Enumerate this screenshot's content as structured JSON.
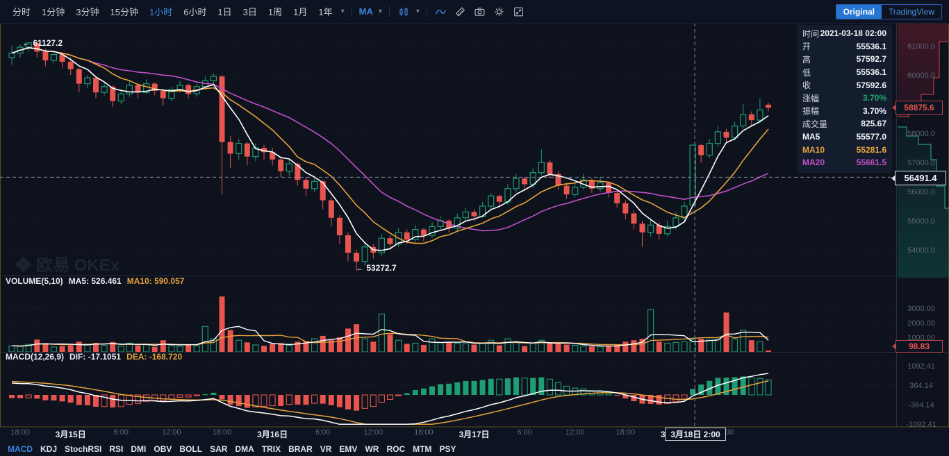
{
  "colors": {
    "up": "#1f9d74",
    "down": "#e8544e",
    "ma5": "#ffffff",
    "ma10": "#e8a33d",
    "ma20": "#c24fc9",
    "accent": "#3d85e0",
    "axis_text": "#5a6472",
    "grid": "#39414f",
    "frame": "#6e5a20",
    "crosshair": "#98a0ab"
  },
  "toolbar": {
    "timeframes": [
      {
        "label": "分时",
        "active": false
      },
      {
        "label": "1分钟",
        "active": false
      },
      {
        "label": "3分钟",
        "active": false
      },
      {
        "label": "15分钟",
        "active": false
      },
      {
        "label": "1小时",
        "active": true
      },
      {
        "label": "6小时",
        "active": false
      },
      {
        "label": "1日",
        "active": false
      },
      {
        "label": "3日",
        "active": false
      },
      {
        "label": "1周",
        "active": false
      },
      {
        "label": "1月",
        "active": false
      },
      {
        "label": "1年",
        "active": false
      }
    ],
    "ma_label": "MA",
    "toggle": {
      "original": "Original",
      "tradingview": "TradingView"
    }
  },
  "info_panel": {
    "rows": [
      {
        "label": "时间",
        "value": "2021-03-18 02:00",
        "color": "#f2f5f9"
      },
      {
        "label": "开",
        "value": "55536.1",
        "color": "#f2f5f9"
      },
      {
        "label": "高",
        "value": "57592.7",
        "color": "#f2f5f9"
      },
      {
        "label": "低",
        "value": "55536.1",
        "color": "#f2f5f9"
      },
      {
        "label": "收",
        "value": "57592.6",
        "color": "#f2f5f9"
      },
      {
        "label": "涨幅",
        "value": "3.70%",
        "color": "#1fab75"
      },
      {
        "label": "振幅",
        "value": "3.70%",
        "color": "#f2f5f9"
      },
      {
        "label": "成交量",
        "value": "825.67",
        "color": "#f2f5f9"
      },
      {
        "label": "MA5",
        "value": "55577.0",
        "color": "#f2f5f9",
        "label_color": "#f2f5f9"
      },
      {
        "label": "MA10",
        "value": "55281.6",
        "color": "#e8a33d",
        "label_color": "#e8a33d"
      },
      {
        "label": "MA20",
        "value": "55661.5",
        "color": "#c24fc9",
        "label_color": "#c24fc9"
      }
    ]
  },
  "pane_headers": {
    "volume": {
      "title": "VOLUME(5,10)",
      "ma5": "MA5: 526.461",
      "ma10": "MA10: 590.057"
    },
    "macd": {
      "title": "MACD(12,26,9)",
      "dif": "DIF: -17.1051",
      "dea": "DEA: -168.720"
    }
  },
  "badges": {
    "last_price": "58875.6",
    "crosshair_price": "56491.4",
    "volume_value": "98.83",
    "time": "3月18日 2:00"
  },
  "annotations": {
    "high": "← 61127.2",
    "low": "← 53272.7",
    "watermark": "欧易 OKEx"
  },
  "axes": {
    "price_ticks": [
      "61000.0",
      "60000.0",
      "59000.0",
      "58000.0",
      "57000.0",
      "56000.0",
      "55000.0",
      "54000.0"
    ],
    "volume_ticks": [
      "3000.00",
      "2000.00",
      "1000.00"
    ],
    "macd_ticks": [
      "1092.41",
      "364.14",
      "-364.14",
      "-1092.41"
    ],
    "time_labels": [
      {
        "text": "18:00",
        "index": 1,
        "day": false
      },
      {
        "text": "3月15日",
        "index": 7,
        "day": true
      },
      {
        "text": "6:00",
        "index": 13,
        "day": false
      },
      {
        "text": "12:00",
        "index": 19,
        "day": false
      },
      {
        "text": "18:00",
        "index": 25,
        "day": false
      },
      {
        "text": "3月16日",
        "index": 31,
        "day": true
      },
      {
        "text": "6:00",
        "index": 37,
        "day": false
      },
      {
        "text": "12:00",
        "index": 43,
        "day": false
      },
      {
        "text": "18:00",
        "index": 49,
        "day": false
      },
      {
        "text": "3月17日",
        "index": 55,
        "day": true
      },
      {
        "text": "6:00",
        "index": 61,
        "day": false
      },
      {
        "text": "12:00",
        "index": 67,
        "day": false
      },
      {
        "text": "18:00",
        "index": 73,
        "day": false
      },
      {
        "text": "3月18日",
        "index": 79,
        "day": true
      },
      {
        "text": "6:00",
        "index": 85,
        "day": false
      }
    ]
  },
  "indicator_tabs": [
    {
      "label": "MACD",
      "active": true
    },
    {
      "label": "KDJ",
      "active": false
    },
    {
      "label": "StochRSI",
      "active": false
    },
    {
      "label": "RSI",
      "active": false
    },
    {
      "label": "DMI",
      "active": false
    },
    {
      "label": "OBV",
      "active": false
    },
    {
      "label": "BOLL",
      "active": false
    },
    {
      "label": "SAR",
      "active": false
    },
    {
      "label": "DMA",
      "active": false
    },
    {
      "label": "TRIX",
      "active": false
    },
    {
      "label": "BRAR",
      "active": false
    },
    {
      "label": "VR",
      "active": false
    },
    {
      "label": "EMV",
      "active": false
    },
    {
      "label": "WR",
      "active": false
    },
    {
      "label": "ROC",
      "active": false
    },
    {
      "label": "MTM",
      "active": false
    },
    {
      "label": "PSY",
      "active": false
    }
  ],
  "chart_data": {
    "type": "candlestick",
    "interval": "1小时",
    "visible_range": "2021-03-14 17:00 — 2021-03-18 11:00",
    "price_axis": {
      "min": 53119,
      "max": 61786,
      "ticks": [
        61000,
        60000,
        59000,
        58000,
        57000,
        56000,
        55000,
        54000
      ]
    },
    "volume_axis": {
      "ticks": [
        1000,
        2000,
        3000
      ]
    },
    "macd_axis": {
      "ticks": [
        1092.41,
        364.14,
        -364.14,
        -1092.41
      ]
    },
    "high_label": 61127.2,
    "low_label": 53272.7,
    "last_price": 58875.6,
    "crosshair": {
      "index": 81,
      "price": 56491.4,
      "time": "3月18日 2:00"
    },
    "candles": [
      [
        60600,
        61000,
        60350,
        60750,
        420
      ],
      [
        60750,
        61050,
        60600,
        60950,
        380
      ],
      [
        60950,
        61127.2,
        60800,
        61100,
        520
      ],
      [
        61100,
        61120,
        60600,
        60800,
        850
      ],
      [
        60800,
        60900,
        60300,
        60500,
        600
      ],
      [
        60500,
        60800,
        60400,
        60700,
        340
      ],
      [
        60700,
        60750,
        60250,
        60450,
        410
      ],
      [
        60450,
        60600,
        60000,
        60200,
        450
      ],
      [
        60200,
        60250,
        59400,
        59700,
        700
      ],
      [
        59700,
        60000,
        59550,
        59900,
        500
      ],
      [
        59900,
        59950,
        59200,
        59400,
        620
      ],
      [
        59400,
        59750,
        59300,
        59600,
        430
      ],
      [
        59600,
        59650,
        58900,
        59100,
        680
      ],
      [
        59100,
        59500,
        59000,
        59350,
        390
      ],
      [
        59350,
        59800,
        59250,
        59650,
        600
      ],
      [
        59650,
        59700,
        59200,
        59400,
        450
      ],
      [
        59400,
        59850,
        59350,
        59700,
        480
      ],
      [
        59700,
        59750,
        59300,
        59450,
        350
      ],
      [
        59450,
        59500,
        58950,
        59200,
        800
      ],
      [
        59200,
        59600,
        59100,
        59500,
        420
      ],
      [
        59500,
        59800,
        59400,
        59650,
        390
      ],
      [
        59650,
        59700,
        59200,
        59350,
        500
      ],
      [
        59350,
        59700,
        59250,
        59600,
        410
      ],
      [
        59600,
        59950,
        59500,
        59800,
        1750
      ],
      [
        59800,
        60050,
        59650,
        59950,
        900
      ],
      [
        59950,
        60000,
        55900,
        57700,
        3800
      ],
      [
        57700,
        57900,
        56800,
        57300,
        1500
      ],
      [
        57300,
        57800,
        57100,
        57650,
        800
      ],
      [
        57650,
        57700,
        56900,
        57200,
        650
      ],
      [
        57200,
        57650,
        57050,
        57500,
        480
      ],
      [
        57500,
        57600,
        57100,
        57350,
        420
      ],
      [
        57350,
        57500,
        56900,
        57100,
        550
      ],
      [
        57100,
        57200,
        56500,
        56700,
        600
      ],
      [
        56700,
        57100,
        56550,
        56950,
        450
      ],
      [
        56950,
        57000,
        56200,
        56400,
        700
      ],
      [
        56400,
        56500,
        55850,
        56100,
        750
      ],
      [
        56100,
        56500,
        56000,
        56350,
        900
      ],
      [
        56350,
        56400,
        55400,
        55700,
        1100
      ],
      [
        55700,
        55800,
        54800,
        55100,
        800
      ],
      [
        55100,
        55200,
        54200,
        54500,
        1000
      ],
      [
        54500,
        54600,
        53600,
        53900,
        1600
      ],
      [
        53900,
        54000,
        53272.7,
        53600,
        1900
      ],
      [
        53600,
        54300,
        53450,
        54100,
        900
      ],
      [
        54100,
        54200,
        53700,
        53900,
        700
      ],
      [
        53900,
        54550,
        53800,
        54400,
        2600
      ],
      [
        54400,
        54500,
        54000,
        54200,
        1200
      ],
      [
        54200,
        54750,
        54100,
        54600,
        800
      ],
      [
        54600,
        54700,
        54200,
        54350,
        550
      ],
      [
        54350,
        54850,
        54250,
        54700,
        600
      ],
      [
        54700,
        54750,
        54300,
        54500,
        480
      ],
      [
        54500,
        54950,
        54400,
        54800,
        900
      ],
      [
        54800,
        55150,
        54700,
        55000,
        650
      ],
      [
        55000,
        55050,
        54600,
        54750,
        700
      ],
      [
        54750,
        55250,
        54650,
        55100,
        600
      ],
      [
        55100,
        55450,
        55000,
        55300,
        550
      ],
      [
        55300,
        55400,
        55000,
        55150,
        500
      ],
      [
        55150,
        55650,
        55100,
        55500,
        600
      ],
      [
        55500,
        55950,
        55400,
        55850,
        800
      ],
      [
        55850,
        55900,
        55500,
        55650,
        450
      ],
      [
        55650,
        56250,
        55550,
        56100,
        900
      ],
      [
        56100,
        56600,
        56000,
        56450,
        700
      ],
      [
        56450,
        56500,
        56100,
        56250,
        400
      ],
      [
        56250,
        56800,
        56150,
        56650,
        600
      ],
      [
        56650,
        57450,
        56550,
        57000,
        800
      ],
      [
        57000,
        57100,
        56450,
        56600,
        600
      ],
      [
        56600,
        56700,
        56050,
        56200,
        550
      ],
      [
        56200,
        56300,
        55750,
        55900,
        500
      ],
      [
        55900,
        56350,
        55800,
        56150,
        450
      ],
      [
        56150,
        56600,
        56050,
        56400,
        400
      ],
      [
        56400,
        56450,
        55950,
        56100,
        380
      ],
      [
        56100,
        56500,
        56000,
        56300,
        350
      ],
      [
        56300,
        56350,
        55800,
        55950,
        420
      ],
      [
        55950,
        56050,
        55450,
        55600,
        500
      ],
      [
        55600,
        55700,
        55050,
        55250,
        700
      ],
      [
        55250,
        55350,
        54700,
        54900,
        800
      ],
      [
        54900,
        55000,
        54100,
        54600,
        900
      ],
      [
        54600,
        55050,
        54450,
        54850,
        2900
      ],
      [
        54850,
        54950,
        54350,
        54550,
        700
      ],
      [
        54550,
        55000,
        54450,
        54800,
        600
      ],
      [
        54800,
        55300,
        54700,
        55100,
        650
      ],
      [
        55100,
        55650,
        55000,
        55500,
        700
      ],
      [
        55536.1,
        57592.7,
        55536.1,
        57592.6,
        825.67
      ],
      [
        57592.6,
        57650,
        57000,
        57250,
        900
      ],
      [
        57250,
        57800,
        57150,
        57650,
        800
      ],
      [
        57650,
        58250,
        57550,
        58050,
        850
      ],
      [
        58050,
        58150,
        57650,
        57850,
        2700
      ],
      [
        57850,
        58400,
        57750,
        58250,
        900
      ],
      [
        58250,
        59000,
        58150,
        58650,
        1500
      ],
      [
        58650,
        58750,
        58250,
        58450,
        800
      ],
      [
        58450,
        59200,
        58350,
        58800,
        700
      ],
      [
        58980,
        59050,
        58750,
        58875.6,
        98.83
      ]
    ]
  }
}
